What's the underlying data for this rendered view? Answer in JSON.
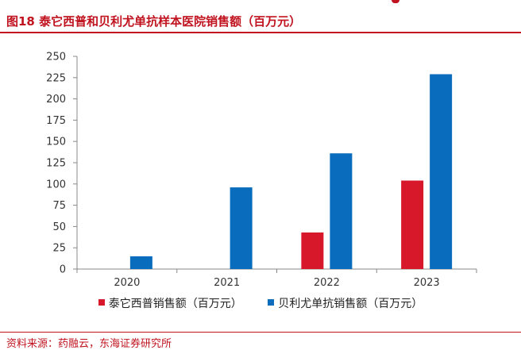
{
  "title": "图18 泰它西普和贝利尤单抗样本医院销售额（百万元）",
  "source": "资料来源：药融云，东海证券研究所",
  "colors": {
    "accent": "#c0131f",
    "series1": "#d7182a",
    "series2": "#0a6cbd"
  },
  "chart_data": {
    "type": "bar",
    "categories": [
      "2020",
      "2021",
      "2022",
      "2023"
    ],
    "series": [
      {
        "name": "泰它西普销售额（百万元）",
        "values": [
          null,
          null,
          43,
          104
        ]
      },
      {
        "name": "贝利尤单抗销售额（百万元）",
        "values": [
          15,
          96,
          136,
          229
        ]
      }
    ],
    "ylim": [
      0,
      250
    ],
    "yticks": [
      "0",
      "25",
      "50",
      "75",
      "100",
      "125",
      "150",
      "175",
      "200",
      "225",
      "250"
    ],
    "legend": "bottom",
    "grid": false
  }
}
